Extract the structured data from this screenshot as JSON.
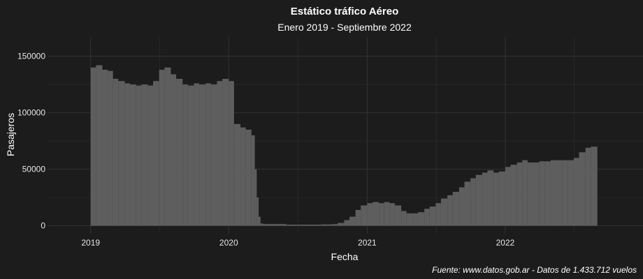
{
  "theme": {
    "background": "#1c1c1c",
    "grid_color": "#333333",
    "bar_color": "#5e5e5e",
    "text_color": "#ffffff",
    "tick_color": "#e6e6e6"
  },
  "chart_data": {
    "type": "bar",
    "title": "Estático tráfico Aéreo",
    "subtitle": "Enero 2019 - Septiembre 2022",
    "xlabel": "Fecha",
    "ylabel": "Pasajeros",
    "caption": "Fuente: www.datos.gob.ar - Datos de 1.433.712 vuelos",
    "x_ticks": [
      {
        "label": "2019",
        "date": "2019-01-01"
      },
      {
        "label": "2020",
        "date": "2020-01-01"
      },
      {
        "label": "2021",
        "date": "2021-01-01"
      },
      {
        "label": "2022",
        "date": "2022-01-01"
      }
    ],
    "y_ticks": [
      {
        "label": "0",
        "value": 0
      },
      {
        "label": "50000",
        "value": 50000
      },
      {
        "label": "100000",
        "value": 100000
      },
      {
        "label": "150000",
        "value": 150000
      }
    ],
    "xlim": [
      "2018-09-09",
      "2022-12-31"
    ],
    "ylim": [
      -7000,
      167000
    ],
    "grid": true,
    "series": [
      {
        "x": [
          "2019-01-01",
          "2019-01-15",
          "2019-02-01",
          "2019-02-15",
          "2019-03-01",
          "2019-03-15",
          "2019-04-01",
          "2019-04-15",
          "2019-05-01",
          "2019-05-15",
          "2019-06-01",
          "2019-06-15",
          "2019-07-01",
          "2019-07-15",
          "2019-08-01",
          "2019-08-15",
          "2019-09-01",
          "2019-09-15",
          "2019-10-01",
          "2019-10-15",
          "2019-11-01",
          "2019-11-15",
          "2019-12-01",
          "2019-12-15",
          "2020-01-01",
          "2020-01-15",
          "2020-02-01",
          "2020-02-15",
          "2020-03-01",
          "2020-03-10",
          "2020-03-15",
          "2020-03-20",
          "2020-03-25",
          "2020-04-01",
          "2020-04-15",
          "2020-05-01",
          "2020-06-01",
          "2020-07-01",
          "2020-08-01",
          "2020-09-01",
          "2020-10-01",
          "2020-10-15",
          "2020-11-01",
          "2020-11-15",
          "2020-12-01",
          "2020-12-15",
          "2021-01-01",
          "2021-01-15",
          "2021-02-01",
          "2021-02-15",
          "2021-03-01",
          "2021-03-15",
          "2021-04-01",
          "2021-04-15",
          "2021-05-01",
          "2021-05-15",
          "2021-06-01",
          "2021-06-15",
          "2021-07-01",
          "2021-07-15",
          "2021-08-01",
          "2021-08-15",
          "2021-09-01",
          "2021-09-15",
          "2021-10-01",
          "2021-10-15",
          "2021-11-01",
          "2021-11-15",
          "2021-12-01",
          "2021-12-15",
          "2022-01-01",
          "2022-01-15",
          "2022-02-01",
          "2022-02-15",
          "2022-03-01",
          "2022-03-15",
          "2022-04-01",
          "2022-04-15",
          "2022-05-01",
          "2022-05-15",
          "2022-06-01",
          "2022-06-15",
          "2022-07-01",
          "2022-07-15",
          "2022-08-01",
          "2022-08-15",
          "2022-08-31"
        ],
        "values": [
          140000,
          142000,
          138000,
          137000,
          130000,
          128000,
          126000,
          125000,
          124000,
          125000,
          124000,
          128000,
          138000,
          140000,
          134000,
          130000,
          125000,
          124000,
          126000,
          125000,
          126000,
          125000,
          128000,
          130000,
          128000,
          90000,
          87000,
          85000,
          80000,
          50000,
          25000,
          8000,
          2000,
          1500,
          1500,
          1500,
          1000,
          1000,
          1000,
          1200,
          1500,
          2500,
          5000,
          8000,
          14000,
          18000,
          20000,
          21000,
          20000,
          21000,
          20000,
          18000,
          13000,
          11000,
          11000,
          12000,
          15000,
          17000,
          20000,
          24000,
          27000,
          30000,
          34000,
          39000,
          42000,
          45000,
          47000,
          49000,
          47000,
          48000,
          52000,
          54000,
          56000,
          58000,
          56000,
          56000,
          57000,
          57000,
          58000,
          58000,
          58000,
          58000,
          60000,
          65000,
          69000,
          70000,
          70000
        ]
      }
    ]
  }
}
